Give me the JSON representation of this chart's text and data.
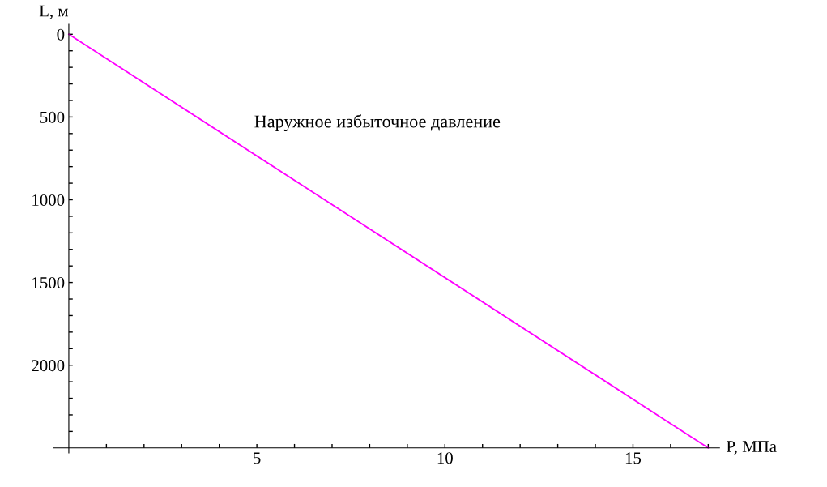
{
  "chart_data": {
    "type": "line",
    "xlabel": "P, МПа",
    "ylabel": "L, м",
    "x": [
      0,
      17
    ],
    "series": [
      {
        "color": "#ff00ff",
        "values": [
          0,
          2500
        ]
      }
    ],
    "xlim": [
      -0.4,
      17.3
    ],
    "ylim": [
      2530,
      -60
    ],
    "xticks": [
      {
        "value": 1,
        "label": null
      },
      {
        "value": 2,
        "label": null
      },
      {
        "value": 3,
        "label": null
      },
      {
        "value": 4,
        "label": null
      },
      5,
      {
        "value": 6,
        "label": null
      },
      {
        "value": 7,
        "label": null
      },
      {
        "value": 8,
        "label": null
      },
      {
        "value": 9,
        "label": null
      },
      10,
      {
        "value": 11,
        "label": null
      },
      {
        "value": 12,
        "label": null
      },
      {
        "value": 13,
        "label": null
      },
      {
        "value": 14,
        "label": null
      },
      15,
      {
        "value": 16,
        "label": null
      },
      {
        "value": 17,
        "label": null
      }
    ],
    "yticks": [
      0,
      {
        "value": 100,
        "label": null
      },
      {
        "value": 200,
        "label": null
      },
      {
        "value": 300,
        "label": null
      },
      {
        "value": 400,
        "label": null
      },
      500,
      {
        "value": 600,
        "label": null
      },
      {
        "value": 700,
        "label": null
      },
      {
        "value": 800,
        "label": null
      },
      {
        "value": 900,
        "label": null
      },
      1000,
      {
        "value": 1100,
        "label": null
      },
      {
        "value": 1200,
        "label": null
      },
      {
        "value": 1300,
        "label": null
      },
      {
        "value": 1400,
        "label": null
      },
      1500,
      {
        "value": 1600,
        "label": null
      },
      {
        "value": 1700,
        "label": null
      },
      {
        "value": 1800,
        "label": null
      },
      {
        "value": 1900,
        "label": null
      },
      2000,
      {
        "value": 2100,
        "label": null
      },
      {
        "value": 2200,
        "label": null
      },
      {
        "value": 2300,
        "label": null
      },
      {
        "value": 2400,
        "label": null
      }
    ],
    "annotations": [
      "Наружное избыточное давление"
    ],
    "grid": false,
    "legend": false
  }
}
